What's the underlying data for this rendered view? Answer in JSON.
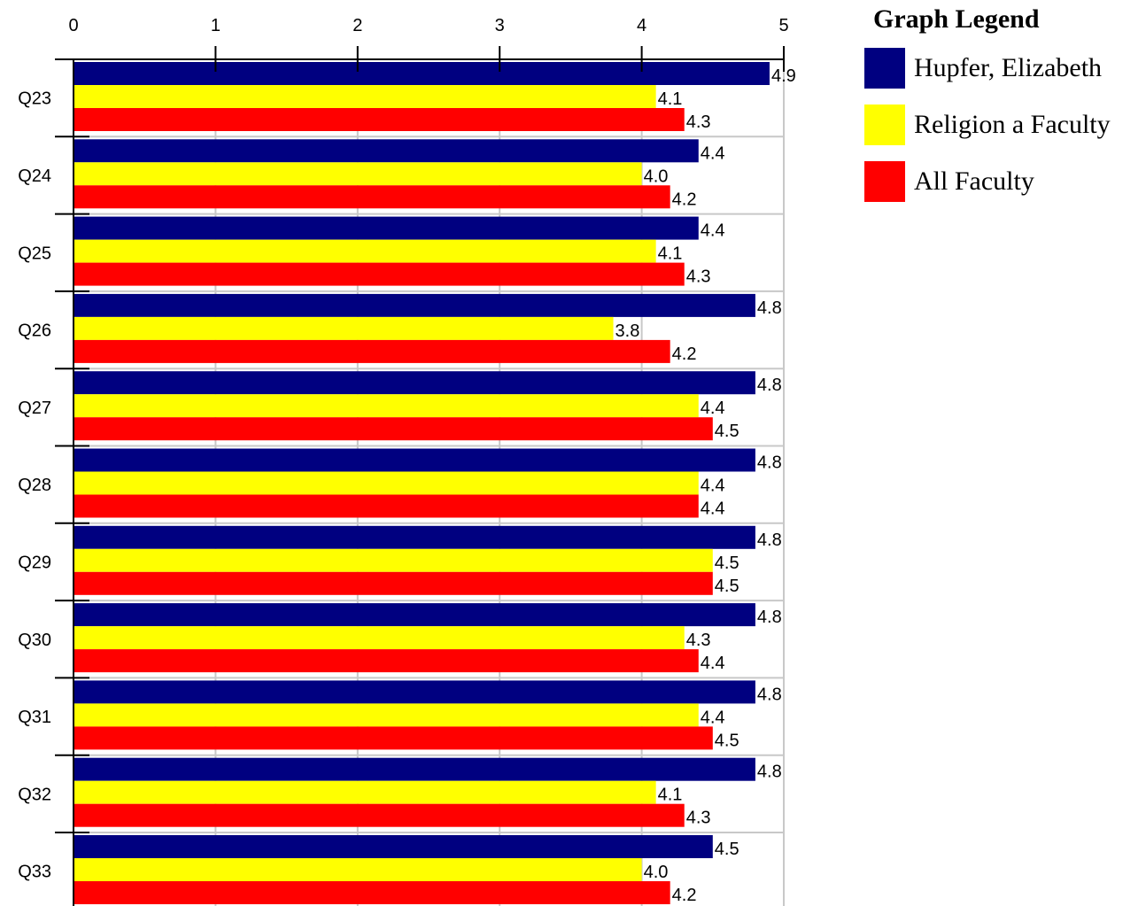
{
  "legend": {
    "title": "Graph Legend"
  },
  "chart_data": {
    "type": "bar",
    "orientation": "horizontal",
    "title": "",
    "xlabel": "",
    "ylabel": "",
    "xlim": [
      0,
      5
    ],
    "x_ticks": [
      "0",
      "1",
      "2",
      "3",
      "4",
      "5"
    ],
    "grid": true,
    "legend_position": "top-right",
    "categories": [
      "Q23",
      "Q24",
      "Q25",
      "Q26",
      "Q27",
      "Q28",
      "Q29",
      "Q30",
      "Q31",
      "Q32",
      "Q33"
    ],
    "series": [
      {
        "name": "Hupfer, Elizabeth",
        "color": "#000080",
        "values": [
          4.9,
          4.4,
          4.4,
          4.8,
          4.8,
          4.8,
          4.8,
          4.8,
          4.8,
          4.8,
          4.5
        ],
        "labels": [
          "4.9",
          "4.4",
          "4.4",
          "4.8",
          "4.8",
          "4.8",
          "4.8",
          "4.8",
          "4.8",
          "4.8",
          "4.5"
        ]
      },
      {
        "name": "Religion a Faculty",
        "color": "#ffff00",
        "values": [
          4.1,
          4.0,
          4.1,
          3.8,
          4.4,
          4.4,
          4.5,
          4.3,
          4.4,
          4.1,
          4.0
        ],
        "labels": [
          "4.1",
          "4.0",
          "4.1",
          "3.8",
          "4.4",
          "4.4",
          "4.5",
          "4.3",
          "4.4",
          "4.1",
          "4.0"
        ]
      },
      {
        "name": "All Faculty",
        "color": "#ff0000",
        "values": [
          4.3,
          4.2,
          4.3,
          4.2,
          4.5,
          4.4,
          4.5,
          4.4,
          4.5,
          4.3,
          4.2
        ],
        "labels": [
          "4.3",
          "4.2",
          "4.3",
          "4.2",
          "4.5",
          "4.4",
          "4.5",
          "4.4",
          "4.5",
          "4.3",
          "4.2"
        ]
      }
    ]
  }
}
